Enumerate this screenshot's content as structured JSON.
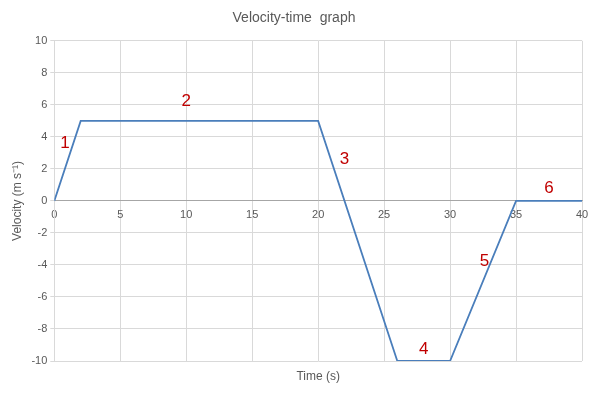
{
  "chart_data": {
    "type": "line",
    "title": "Velocity-time  graph",
    "x_label": "Time (s)",
    "y_label": "Velocity (m s⁻¹)",
    "x": [
      0,
      2,
      20,
      26,
      30,
      35,
      40
    ],
    "values": [
      0,
      5,
      5,
      -10,
      -10,
      0,
      0
    ],
    "color": "#4a7ebb",
    "xlim": [
      0,
      40
    ],
    "xticks": [
      0,
      5,
      10,
      15,
      20,
      25,
      30,
      35,
      40
    ],
    "ylim": [
      -10,
      10
    ],
    "yticks": [
      -10,
      -8,
      -6,
      -4,
      -2,
      0,
      2,
      4,
      6,
      8,
      10
    ],
    "grid": true,
    "annotations": [
      {
        "text": "1",
        "x": 0.8,
        "y": 3.6,
        "color": "#c00000"
      },
      {
        "text": "2",
        "x": 10,
        "y": 6.2,
        "color": "#c00000"
      },
      {
        "text": "3",
        "x": 22,
        "y": 2.6,
        "color": "#c00000"
      },
      {
        "text": "4",
        "x": 28,
        "y": -9.3,
        "color": "#c00000"
      },
      {
        "text": "5",
        "x": 32.6,
        "y": -3.8,
        "color": "#c00000"
      },
      {
        "text": "6",
        "x": 37.5,
        "y": 0.8,
        "color": "#c00000"
      }
    ]
  }
}
